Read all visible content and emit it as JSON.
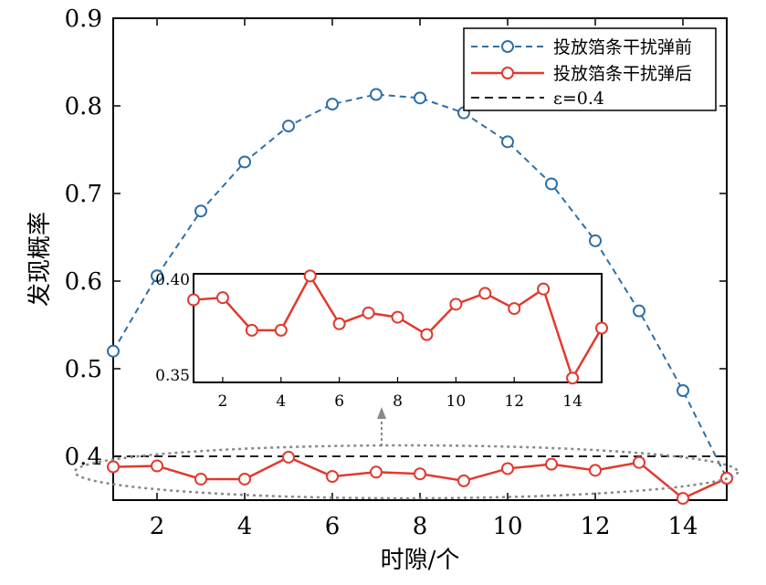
{
  "chart_data": {
    "type": "line",
    "title": "",
    "xlabel": "时隙/个",
    "ylabel": "发现概率",
    "xlim": [
      1,
      15
    ],
    "ylim": [
      0.35,
      0.9
    ],
    "x_ticks": [
      2,
      4,
      6,
      8,
      10,
      12,
      14
    ],
    "y_ticks": [
      0.4,
      0.5,
      0.6,
      0.7,
      0.8,
      0.9
    ],
    "x_tick_labels": [
      "2",
      "4",
      "6",
      "8",
      "10",
      "12",
      "14"
    ],
    "y_tick_labels": [
      "0.4",
      "0.5",
      "0.6",
      "0.7",
      "0.8",
      "0.9"
    ],
    "grid": false,
    "legend_position": "top-right",
    "x": [
      1,
      2,
      3,
      4,
      5,
      6,
      7,
      8,
      9,
      10,
      11,
      12,
      13,
      14,
      15
    ],
    "series": [
      {
        "name": "投放箔条干扰弹前",
        "style": "dashed-circle",
        "color": "#2e6fa6",
        "values": [
          0.52,
          0.606,
          0.68,
          0.736,
          0.777,
          0.802,
          0.813,
          0.809,
          0.792,
          0.759,
          0.711,
          0.646,
          0.566,
          0.475,
          0.375
        ]
      },
      {
        "name": "投放箔条干扰弹后",
        "style": "solid-circle",
        "color": "#e03a2f",
        "values": [
          0.388,
          0.389,
          0.374,
          0.374,
          0.399,
          0.377,
          0.382,
          0.38,
          0.372,
          0.386,
          0.391,
          0.384,
          0.393,
          0.352,
          0.375
        ]
      },
      {
        "name": "ε=0.4",
        "style": "dashed",
        "color": "#000000",
        "values": [
          0.4,
          0.4,
          0.4,
          0.4,
          0.4,
          0.4,
          0.4,
          0.4,
          0.4,
          0.4,
          0.4,
          0.4,
          0.4,
          0.4,
          0.4
        ]
      }
    ],
    "inset": {
      "xlim": [
        1,
        15
      ],
      "ylim": [
        0.35,
        0.4
      ],
      "x_ticks": [
        2,
        4,
        6,
        8,
        10,
        12,
        14
      ],
      "x_tick_labels": [
        "2",
        "4",
        "6",
        "8",
        "10",
        "12",
        "14"
      ],
      "y_ticks": [
        0.35,
        0.4
      ],
      "y_tick_labels": [
        "0.35",
        "0.40"
      ],
      "series_name": "投放箔条干扰弹后"
    }
  }
}
